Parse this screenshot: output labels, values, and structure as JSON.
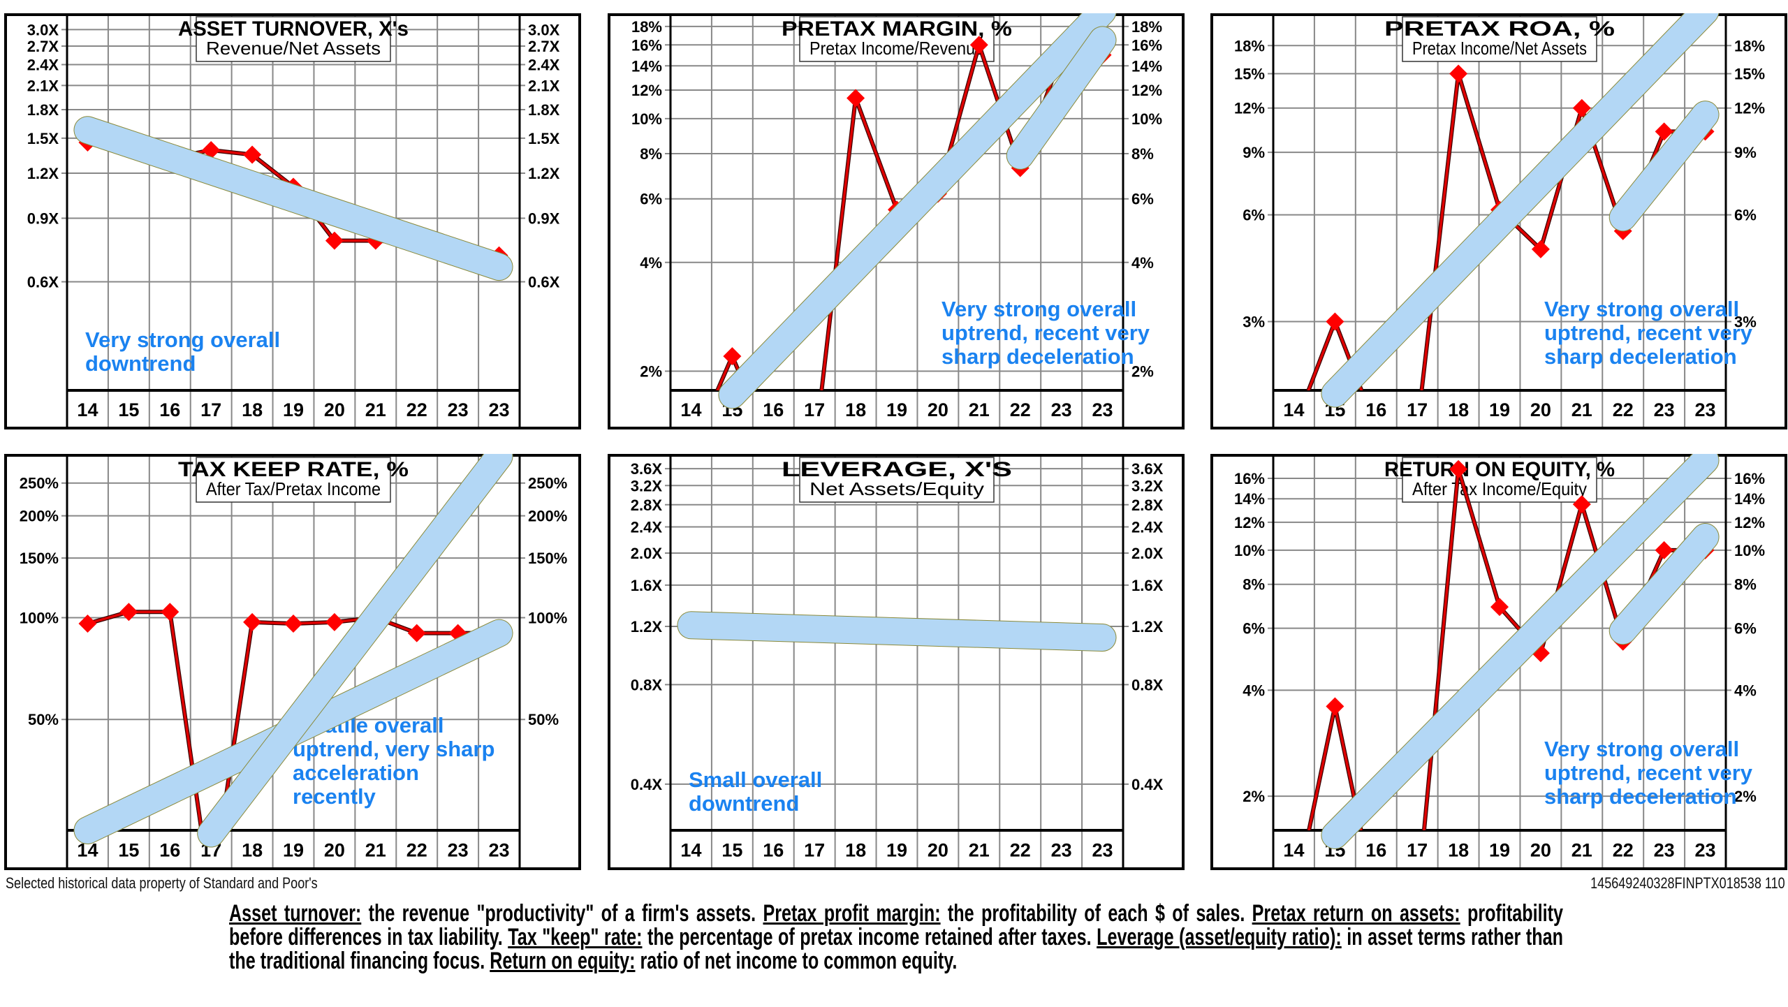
{
  "colors": {
    "line": "#e00000",
    "marker": "#ff0000",
    "trend_band": "#b3d7f5",
    "trend_band_edge": "#8a8a3a",
    "annotation": "#1a82f0",
    "grid": "#888888",
    "axis": "#000000"
  },
  "chart_data": [
    {
      "id": "asset-turnover",
      "type": "line",
      "scale": "log",
      "title": "ASSET TURNOVER, X's",
      "subtitle": "Revenue/Net Assets",
      "categories": [
        "14",
        "15",
        "16",
        "17",
        "18",
        "19",
        "20",
        "21",
        "22",
        "23",
        "23"
      ],
      "values": [
        1.46,
        1.41,
        1.32,
        1.39,
        1.35,
        1.1,
        0.78,
        0.78,
        0.77,
        0.71,
        0.71
      ],
      "ylim": [
        0.3,
        3.3
      ],
      "yticks": [
        {
          "v": 3.0,
          "label": "3.0X"
        },
        {
          "v": 2.7,
          "label": "2.7X"
        },
        {
          "v": 2.4,
          "label": "2.4X"
        },
        {
          "v": 2.1,
          "label": "2.1X"
        },
        {
          "v": 1.8,
          "label": "1.8X"
        },
        {
          "v": 1.5,
          "label": "1.5X"
        },
        {
          "v": 1.2,
          "label": "1.2X"
        },
        {
          "v": 0.9,
          "label": "0.9X"
        },
        {
          "v": 0.6,
          "label": "0.6X"
        }
      ],
      "trends": [
        {
          "from": [
            0,
            1.58
          ],
          "to": [
            10,
            0.66
          ]
        }
      ],
      "annotation": [
        "Very strong overall",
        "downtrend"
      ],
      "annotation_pos": "bottom-left"
    },
    {
      "id": "pretax-margin",
      "type": "line",
      "scale": "log",
      "title": "PRETAX MARGIN, %",
      "subtitle": "Pretax Income/Revenue",
      "categories": [
        "14",
        "15",
        "16",
        "17",
        "18",
        "19",
        "20",
        "21",
        "22",
        "23",
        "23"
      ],
      "values": [
        1.2,
        2.2,
        1.2,
        1.2,
        11.4,
        5.6,
        6.2,
        16.0,
        7.3,
        15.0,
        15.0
      ],
      "values_note": "14, 16 and 17 fall below the plotted range",
      "ylim": [
        1.77,
        19.4
      ],
      "yticks": [
        {
          "v": 18,
          "label": "18%"
        },
        {
          "v": 16,
          "label": "16%"
        },
        {
          "v": 14,
          "label": "14%"
        },
        {
          "v": 12,
          "label": "12%"
        },
        {
          "v": 10,
          "label": "10%"
        },
        {
          "v": 8,
          "label": "8%"
        },
        {
          "v": 6,
          "label": "6%"
        },
        {
          "v": 4,
          "label": "4%"
        },
        {
          "v": 2,
          "label": "2%"
        }
      ],
      "trends": [
        {
          "from": [
            1,
            1.72
          ],
          "to": [
            10,
            19.8
          ]
        },
        {
          "from": [
            8,
            7.9
          ],
          "to": [
            10,
            16.5
          ]
        }
      ],
      "annotation": [
        "Very strong overall",
        "uptrend, recent very",
        "sharp deceleration"
      ],
      "annotation_pos": "bottom-right"
    },
    {
      "id": "pretax-roa",
      "type": "line",
      "scale": "log",
      "title": "PRETAX ROA, %",
      "subtitle": "Pretax Income/Net Assets",
      "categories": [
        "14",
        "15",
        "16",
        "17",
        "18",
        "19",
        "20",
        "21",
        "22",
        "23",
        "23"
      ],
      "values": [
        1.5,
        3.0,
        1.5,
        1.5,
        15.0,
        6.2,
        4.8,
        12.0,
        5.4,
        10.3,
        10.3
      ],
      "values_note": "14, 16 and 17 fall below the plotted range",
      "ylim": [
        1.92,
        22.0
      ],
      "yticks": [
        {
          "v": 18,
          "label": "18%"
        },
        {
          "v": 15,
          "label": "15%"
        },
        {
          "v": 12,
          "label": "12%"
        },
        {
          "v": 9,
          "label": "9%"
        },
        {
          "v": 6,
          "label": "6%"
        },
        {
          "v": 3,
          "label": "3%"
        }
      ],
      "trends": [
        {
          "from": [
            1,
            1.88
          ],
          "to": [
            10,
            22.5
          ]
        },
        {
          "from": [
            8,
            5.9
          ],
          "to": [
            10,
            11.5
          ]
        }
      ],
      "annotation": [
        "Very strong overall",
        "uptrend, recent very",
        "sharp deceleration"
      ],
      "annotation_pos": "bottom-right"
    },
    {
      "id": "tax-keep-rate",
      "type": "line",
      "scale": "log",
      "title": "TAX KEEP RATE, %",
      "subtitle": "After Tax/Pretax Income",
      "categories": [
        "14",
        "15",
        "16",
        "17",
        "18",
        "19",
        "20",
        "21",
        "22",
        "23",
        "23"
      ],
      "values": [
        96,
        104,
        104,
        15,
        97,
        96,
        97,
        100,
        90,
        90,
        90
      ],
      "values_note": "17 falls below the plotted range",
      "ylim": [
        23.5,
        302
      ],
      "yticks": [
        {
          "v": 250,
          "label": "250%"
        },
        {
          "v": 200,
          "label": "200%"
        },
        {
          "v": 150,
          "label": "150%"
        },
        {
          "v": 100,
          "label": "100%"
        },
        {
          "v": 50,
          "label": "50%"
        }
      ],
      "trends": [
        {
          "from": [
            0,
            23.5
          ],
          "to": [
            10,
            90
          ]
        },
        {
          "from": [
            3,
            23.0
          ],
          "to": [
            10,
            300
          ]
        }
      ],
      "annotation": [
        "Volatile overall",
        "uptrend, very sharp",
        "acceleration",
        "recently"
      ],
      "annotation_pos": "bottom-center"
    },
    {
      "id": "leverage",
      "type": "line",
      "scale": "log",
      "title": "LEVERAGE, X'S",
      "subtitle": "Net Assets/Equity",
      "categories": [
        "14",
        "15",
        "16",
        "17",
        "18",
        "19",
        "20",
        "21",
        "22",
        "23",
        "23"
      ],
      "values": [
        1.22,
        1.16,
        1.17,
        1.22,
        1.2,
        1.16,
        1.12,
        1.12,
        1.15,
        1.1,
        1.1
      ],
      "ylim": [
        0.29,
        3.95
      ],
      "yticks": [
        {
          "v": 3.6,
          "label": "3.6X"
        },
        {
          "v": 3.2,
          "label": "3.2X"
        },
        {
          "v": 2.8,
          "label": "2.8X"
        },
        {
          "v": 2.4,
          "label": "2.4X"
        },
        {
          "v": 2.0,
          "label": "2.0X"
        },
        {
          "v": 1.6,
          "label": "1.6X"
        },
        {
          "v": 1.2,
          "label": "1.2X"
        },
        {
          "v": 0.8,
          "label": "0.8X"
        },
        {
          "v": 0.4,
          "label": "0.4X"
        }
      ],
      "trends": [
        {
          "from": [
            0,
            1.21
          ],
          "to": [
            10,
            1.11
          ]
        }
      ],
      "annotation": [
        "Small overall",
        "downtrend"
      ],
      "annotation_pos": "bottom-left"
    },
    {
      "id": "return-on-equity",
      "type": "line",
      "scale": "log",
      "title": "RETURN ON EQUITY, %",
      "subtitle": "After Tax Income/Equity",
      "categories": [
        "14",
        "15",
        "16",
        "17",
        "18",
        "19",
        "20",
        "21",
        "22",
        "23",
        "23"
      ],
      "values": [
        1.0,
        3.6,
        1.0,
        1.0,
        17.0,
        6.9,
        5.1,
        13.5,
        5.5,
        10.0,
        10.0
      ],
      "values_note": "14, 16 and 17 fall below the plotted range",
      "ylim": [
        1.6,
        18.6
      ],
      "yticks": [
        {
          "v": 16,
          "label": "16%"
        },
        {
          "v": 14,
          "label": "14%"
        },
        {
          "v": 12,
          "label": "12%"
        },
        {
          "v": 10,
          "label": "10%"
        },
        {
          "v": 8,
          "label": "8%"
        },
        {
          "v": 6,
          "label": "6%"
        },
        {
          "v": 4,
          "label": "4%"
        },
        {
          "v": 2,
          "label": "2%"
        }
      ],
      "trends": [
        {
          "from": [
            1,
            1.55
          ],
          "to": [
            10,
            18.0
          ]
        },
        {
          "from": [
            8,
            5.9
          ],
          "to": [
            10,
            10.9
          ]
        }
      ],
      "annotation": [
        "Very strong overall",
        "uptrend, recent very",
        "sharp deceleration"
      ],
      "annotation_pos": "bottom-right"
    }
  ],
  "footer": {
    "source_note": "Selected historical data property of Standard and Poor's",
    "code": "145649240328FINPTX018538 110"
  },
  "glossary": [
    {
      "term": "Asset turnover:",
      "text": " the revenue \"productivity\" of a firm's assets. "
    },
    {
      "term": "Pretax profit margin:",
      "text": " the profitability of each $ of sales. "
    },
    {
      "term": "Pretax return on assets:",
      "text": " profitability before differences in tax liability. "
    },
    {
      "term": "Tax \"keep\" rate:",
      "text": " the percentage of pretax income retained after taxes. "
    },
    {
      "term": "Leverage (asset/equity ratio):",
      "text": " in asset terms rather than the traditional financing focus. "
    },
    {
      "term": "Return on equity:",
      "text": " ratio of net income to common equity."
    }
  ]
}
